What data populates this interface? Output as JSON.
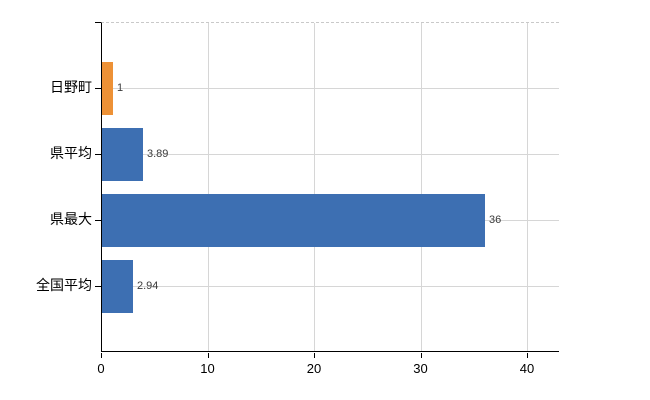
{
  "chart_data": {
    "type": "bar",
    "orientation": "horizontal",
    "title": "",
    "xlabel": "",
    "ylabel": "",
    "categories": [
      "日野町",
      "県平均",
      "県最大",
      "全国平均"
    ],
    "values": [
      1,
      3.89,
      36,
      2.94
    ],
    "value_labels": [
      "1",
      "3.89",
      "36",
      "2.94"
    ],
    "bar_colors": [
      "#ed9136",
      "#3d6fb2",
      "#3d6fb2",
      "#3d6fb2"
    ],
    "x_ticks": [
      0,
      10,
      20,
      30,
      40
    ],
    "x_tick_labels": [
      "0",
      "10",
      "20",
      "30",
      "40"
    ],
    "xlim": [
      0,
      43
    ],
    "grid": true,
    "legend": "none",
    "colors": {
      "background": "#ffffff",
      "axis": "#000000",
      "gridline": "#d6d6d6",
      "top_border": "#c9c9c9",
      "value_label_text": "#3a3a3a",
      "tick_label_text": "#000000"
    }
  }
}
